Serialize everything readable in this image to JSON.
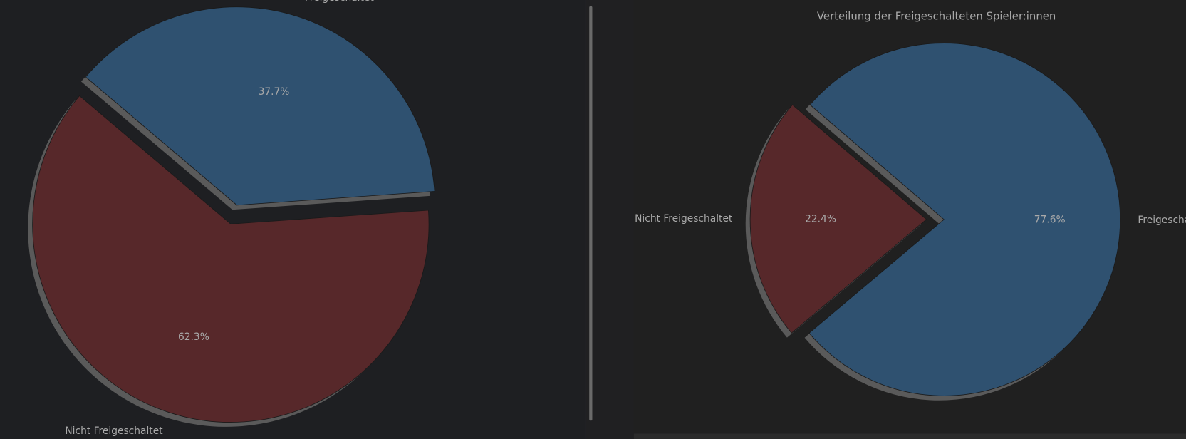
{
  "chart_data": [
    {
      "type": "pie",
      "categories": [
        "Freigeschaltet",
        "Nicht Freigeschaltet"
      ],
      "values": [
        37.7,
        62.3
      ],
      "value_labels": [
        "37.7%",
        "62.3%"
      ],
      "colors": [
        "#2f5170",
        "#57282a"
      ]
    },
    {
      "type": "pie",
      "title": "Verteilung der Freigeschalteten Spieler:innen",
      "categories": [
        "Freigeschaltet",
        "Nicht Freigeschaltet"
      ],
      "values": [
        77.6,
        22.4
      ],
      "value_labels": [
        "77.6%",
        "22.4%"
      ],
      "colors": [
        "#2f5170",
        "#57282a"
      ]
    }
  ]
}
